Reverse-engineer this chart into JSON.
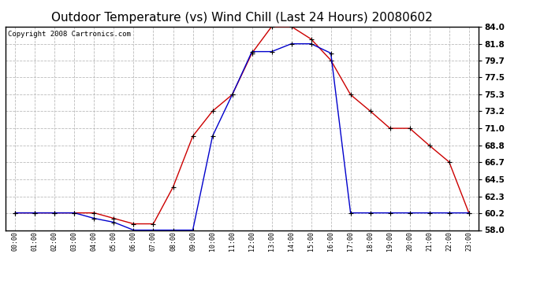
{
  "title": "Outdoor Temperature (vs) Wind Chill (Last 24 Hours) 20080602",
  "copyright": "Copyright 2008 Cartronics.com",
  "hours": [
    "00:00",
    "01:00",
    "02:00",
    "03:00",
    "04:00",
    "05:00",
    "06:00",
    "07:00",
    "08:00",
    "09:00",
    "10:00",
    "11:00",
    "12:00",
    "13:00",
    "14:00",
    "15:00",
    "16:00",
    "17:00",
    "18:00",
    "19:00",
    "20:00",
    "21:00",
    "22:00",
    "23:00"
  ],
  "temp": [
    60.2,
    60.2,
    60.2,
    60.2,
    60.2,
    59.5,
    58.8,
    58.8,
    63.5,
    70.0,
    73.2,
    75.3,
    80.6,
    84.0,
    84.0,
    82.4,
    79.7,
    75.3,
    73.2,
    71.0,
    71.0,
    68.8,
    66.7,
    60.2
  ],
  "windchill": [
    60.2,
    60.2,
    60.2,
    60.2,
    59.5,
    59.0,
    58.0,
    58.0,
    58.0,
    58.0,
    70.0,
    75.3,
    80.8,
    80.8,
    81.8,
    81.8,
    80.6,
    60.2,
    60.2,
    60.2,
    60.2,
    60.2,
    60.2,
    60.2
  ],
  "temp_color": "#cc0000",
  "windchill_color": "#0000cc",
  "bg_color": "#ffffff",
  "grid_color": "#bbbbbb",
  "ylim": [
    58.0,
    84.0
  ],
  "yticks": [
    58.0,
    60.2,
    62.3,
    64.5,
    66.7,
    68.8,
    71.0,
    73.2,
    75.3,
    77.5,
    79.7,
    81.8,
    84.0
  ],
  "title_fontsize": 11,
  "copyright_fontsize": 6.5
}
